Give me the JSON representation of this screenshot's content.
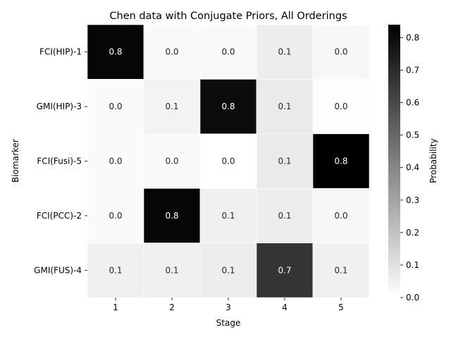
{
  "chart_data": {
    "type": "heatmap",
    "title": "Chen data with Conjugate Priors, All Orderings",
    "xlabel": "Stage",
    "ylabel": "Biomarker",
    "x_categories": [
      "1",
      "2",
      "3",
      "4",
      "5"
    ],
    "y_categories": [
      "FCI(HIP)-1",
      "GMI(HIP)-3",
      "FCI(Fusi)-5",
      "FCI(PCC)-2",
      "GMI(FUS)-4"
    ],
    "values": [
      [
        0.8,
        0.0,
        0.0,
        0.1,
        0.0
      ],
      [
        0.0,
        0.1,
        0.8,
        0.1,
        0.0
      ],
      [
        0.0,
        0.0,
        0.0,
        0.1,
        0.8
      ],
      [
        0.0,
        0.8,
        0.1,
        0.1,
        0.0
      ],
      [
        0.1,
        0.1,
        0.1,
        0.7,
        0.1
      ]
    ],
    "true_values": [
      [
        0.82,
        0.02,
        0.02,
        0.06,
        0.025
      ],
      [
        0.015,
        0.04,
        0.8,
        0.07,
        0.005
      ],
      [
        0.015,
        0.02,
        0.0,
        0.07,
        0.84
      ],
      [
        0.015,
        0.82,
        0.05,
        0.06,
        0.025
      ],
      [
        0.05,
        0.05,
        0.06,
        0.67,
        0.05
      ]
    ],
    "colorbar": {
      "label": "Probability",
      "range": [
        0.0,
        0.84
      ],
      "ticks": [
        "0.0",
        "0.1",
        "0.2",
        "0.3",
        "0.4",
        "0.5",
        "0.6",
        "0.7",
        "0.8"
      ],
      "colormap": "Greys"
    }
  }
}
